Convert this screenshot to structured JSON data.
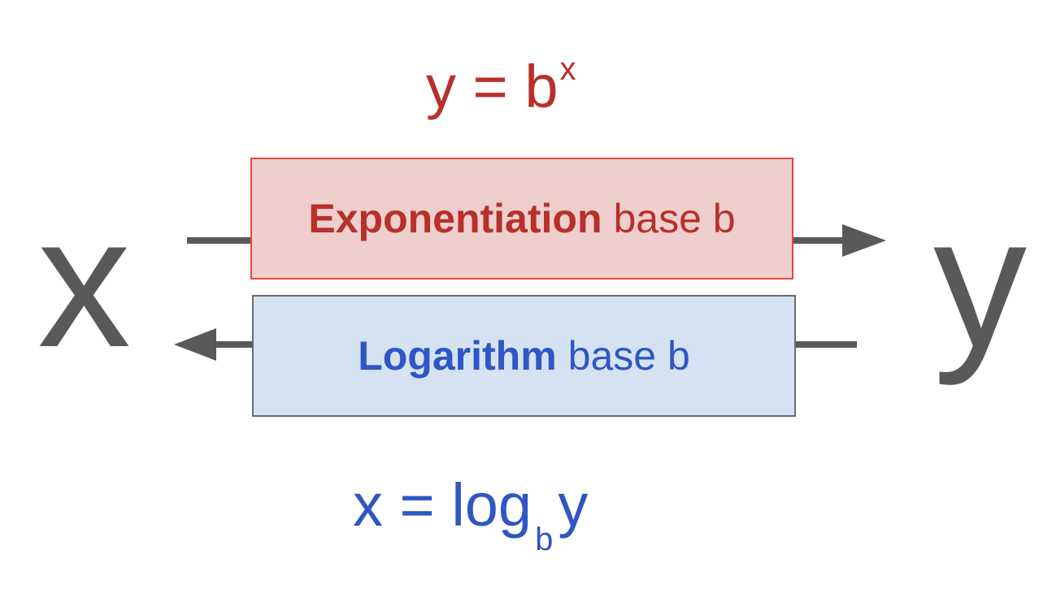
{
  "top_formula": {
    "base_text": "y = b",
    "exponent": "x",
    "color": "#b8302a"
  },
  "exponentiation_box": {
    "bold_label": "Exponentiation",
    "rest_label": "base b",
    "fill_color": "#efcece",
    "border_color": "#e2483d",
    "text_color": "#b8302a"
  },
  "logarithm_box": {
    "bold_label": "Logarithm",
    "rest_label": "base b",
    "fill_color": "#d5e2f1",
    "border_color": "#6a6a6a",
    "text_color": "#2e56c4"
  },
  "variables": {
    "left": "x",
    "right": "y",
    "color": "#595959"
  },
  "bottom_formula": {
    "prefix": "x = log",
    "subscript": "b",
    "suffix": "y",
    "color": "#2e56c4"
  },
  "arrows": {
    "color": "#595959",
    "forward_direction": "x to y",
    "inverse_direction": "y to x"
  }
}
